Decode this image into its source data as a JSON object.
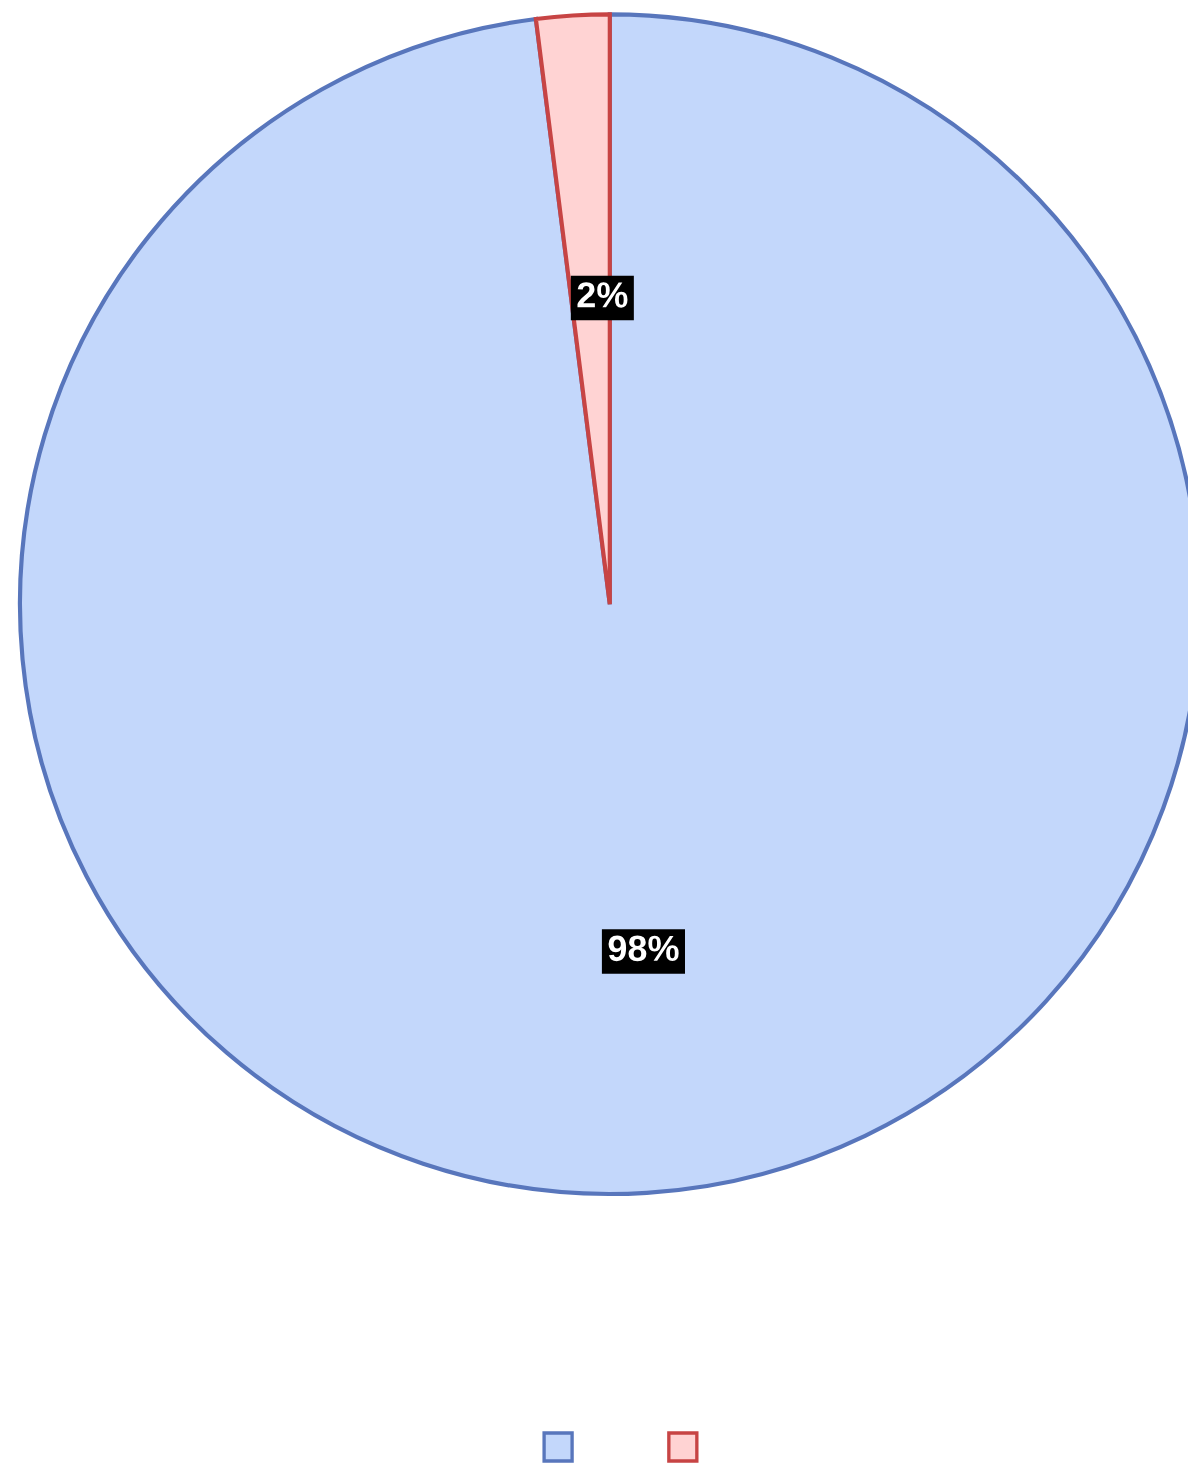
{
  "chart_data": {
    "type": "pie",
    "categories": [
      null,
      null
    ],
    "values": [
      98,
      2
    ],
    "value_labels": [
      "98%",
      "2%"
    ],
    "colors": [
      "#c3d7fb",
      "#ffd3d3"
    ]
  }
}
